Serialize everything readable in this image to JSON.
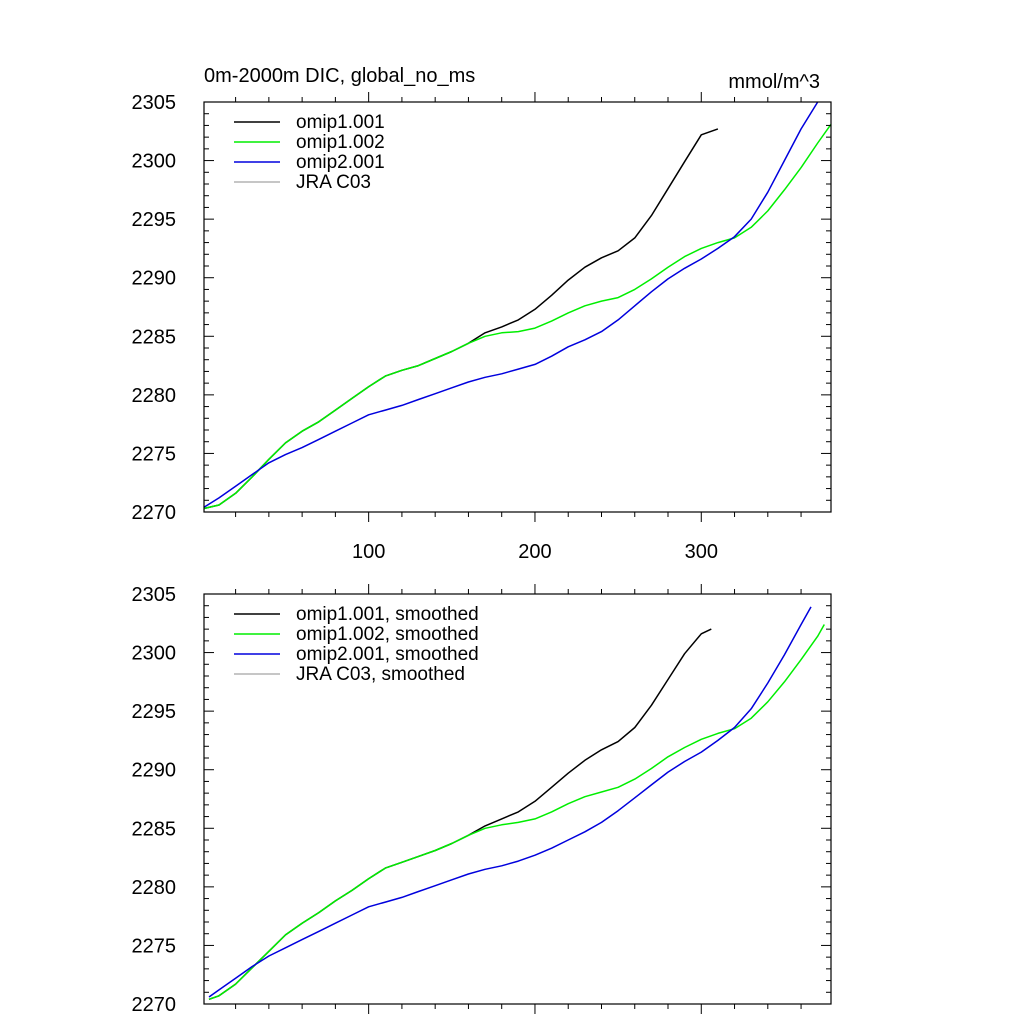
{
  "chart_data": [
    {
      "type": "line",
      "title": "0m-2000m DIC, global_no_ms",
      "units_label": "mmol/m^3",
      "xlabel": "",
      "ylabel": "",
      "xlim": [
        1,
        378
      ],
      "ylim": [
        2270,
        2305
      ],
      "x_ticks": [
        100,
        200,
        300
      ],
      "x_tick_labels_visible": true,
      "y_ticks": [
        2270,
        2275,
        2280,
        2285,
        2290,
        2295,
        2300,
        2305
      ],
      "grid": false,
      "legend_position": "top-left",
      "series": [
        {
          "name": "omip1.001",
          "color": "#000000",
          "x": [
            1,
            10,
            20,
            30,
            40,
            50,
            60,
            70,
            80,
            90,
            100,
            110,
            120,
            130,
            140,
            150,
            160,
            170,
            180,
            190,
            200,
            210,
            220,
            230,
            240,
            250,
            260,
            270,
            280,
            290,
            300,
            310
          ],
          "y": [
            2270.3,
            2270.6,
            2271.6,
            2273.0,
            2274.5,
            2275.9,
            2276.9,
            2277.7,
            2278.7,
            2279.7,
            2280.7,
            2281.6,
            2282.1,
            2282.5,
            2283.1,
            2283.7,
            2284.4,
            2285.3,
            2285.8,
            2286.4,
            2287.3,
            2288.5,
            2289.8,
            2290.9,
            2291.7,
            2292.3,
            2293.4,
            2295.3,
            2297.6,
            2299.9,
            2302.2,
            2302.7
          ]
        },
        {
          "name": "omip1.002",
          "color": "#00ee00",
          "x": [
            1,
            10,
            20,
            30,
            40,
            50,
            60,
            70,
            80,
            90,
            100,
            110,
            120,
            130,
            140,
            150,
            160,
            170,
            180,
            190,
            200,
            210,
            220,
            230,
            240,
            250,
            260,
            270,
            280,
            290,
            300,
            310,
            320,
            330,
            340,
            350,
            360,
            370,
            378
          ],
          "y": [
            2270.3,
            2270.6,
            2271.6,
            2273.0,
            2274.5,
            2275.9,
            2276.9,
            2277.7,
            2278.7,
            2279.7,
            2280.7,
            2281.6,
            2282.1,
            2282.5,
            2283.1,
            2283.7,
            2284.4,
            2285.0,
            2285.3,
            2285.4,
            2285.7,
            2286.3,
            2287.0,
            2287.6,
            2288.0,
            2288.3,
            2289.0,
            2289.9,
            2290.9,
            2291.8,
            2292.5,
            2293.0,
            2293.4,
            2294.3,
            2295.7,
            2297.5,
            2299.4,
            2301.5,
            2303.1
          ]
        },
        {
          "name": "omip2.001",
          "color": "#0000dd",
          "x": [
            1,
            10,
            20,
            30,
            40,
            50,
            60,
            70,
            80,
            90,
            100,
            110,
            120,
            130,
            140,
            150,
            160,
            170,
            180,
            190,
            200,
            210,
            220,
            230,
            240,
            250,
            260,
            270,
            280,
            290,
            300,
            310,
            320,
            330,
            340,
            350,
            360,
            370
          ],
          "y": [
            2270.4,
            2271.2,
            2272.2,
            2273.2,
            2274.2,
            2274.9,
            2275.5,
            2276.2,
            2276.9,
            2277.6,
            2278.3,
            2278.7,
            2279.1,
            2279.6,
            2280.1,
            2280.6,
            2281.1,
            2281.5,
            2281.8,
            2282.2,
            2282.6,
            2283.3,
            2284.1,
            2284.7,
            2285.4,
            2286.4,
            2287.6,
            2288.8,
            2289.9,
            2290.8,
            2291.6,
            2292.5,
            2293.5,
            2295.0,
            2297.3,
            2300.0,
            2302.7,
            2305.0
          ]
        },
        {
          "name": "JRA C03",
          "color": "#b3b3b3",
          "x": [],
          "y": []
        }
      ]
    },
    {
      "type": "line",
      "title": "",
      "xlabel": "",
      "ylabel": "",
      "xlim": [
        1,
        378
      ],
      "ylim": [
        2270,
        2305
      ],
      "x_ticks": [
        100,
        200,
        300
      ],
      "x_tick_labels_visible": false,
      "y_ticks": [
        2270,
        2275,
        2280,
        2285,
        2290,
        2295,
        2300,
        2305
      ],
      "grid": false,
      "legend_position": "top-left",
      "series": [
        {
          "name": "omip1.001, smoothed",
          "color": "#000000",
          "x": [
            4,
            10,
            20,
            30,
            40,
            50,
            60,
            70,
            80,
            90,
            100,
            110,
            120,
            130,
            140,
            150,
            160,
            170,
            180,
            190,
            200,
            210,
            220,
            230,
            240,
            250,
            260,
            270,
            280,
            290,
            300,
            306
          ],
          "y": [
            2270.4,
            2270.7,
            2271.7,
            2273.1,
            2274.5,
            2275.9,
            2276.9,
            2277.8,
            2278.8,
            2279.7,
            2280.7,
            2281.6,
            2282.1,
            2282.6,
            2283.1,
            2283.7,
            2284.4,
            2285.2,
            2285.8,
            2286.4,
            2287.3,
            2288.5,
            2289.7,
            2290.8,
            2291.7,
            2292.4,
            2293.6,
            2295.5,
            2297.7,
            2299.9,
            2301.6,
            2302.0
          ]
        },
        {
          "name": "omip1.002, smoothed",
          "color": "#00ee00",
          "x": [
            4,
            10,
            20,
            30,
            40,
            50,
            60,
            70,
            80,
            90,
            100,
            110,
            120,
            130,
            140,
            150,
            160,
            170,
            180,
            190,
            200,
            210,
            220,
            230,
            240,
            250,
            260,
            270,
            280,
            290,
            300,
            310,
            320,
            330,
            340,
            350,
            360,
            370,
            374
          ],
          "y": [
            2270.4,
            2270.7,
            2271.7,
            2273.1,
            2274.5,
            2275.9,
            2276.9,
            2277.8,
            2278.8,
            2279.7,
            2280.7,
            2281.6,
            2282.1,
            2282.6,
            2283.1,
            2283.7,
            2284.4,
            2285.0,
            2285.3,
            2285.5,
            2285.8,
            2286.4,
            2287.1,
            2287.7,
            2288.1,
            2288.5,
            2289.2,
            2290.1,
            2291.1,
            2291.9,
            2292.6,
            2293.1,
            2293.5,
            2294.4,
            2295.8,
            2297.5,
            2299.4,
            2301.4,
            2302.4
          ]
        },
        {
          "name": "omip2.001, smoothed",
          "color": "#0000dd",
          "x": [
            4,
            10,
            20,
            30,
            40,
            50,
            60,
            70,
            80,
            90,
            100,
            110,
            120,
            130,
            140,
            150,
            160,
            170,
            180,
            190,
            200,
            210,
            220,
            230,
            240,
            250,
            260,
            270,
            280,
            290,
            300,
            310,
            320,
            330,
            340,
            350,
            360,
            366
          ],
          "y": [
            2270.6,
            2271.2,
            2272.2,
            2273.2,
            2274.1,
            2274.8,
            2275.5,
            2276.2,
            2276.9,
            2277.6,
            2278.3,
            2278.7,
            2279.1,
            2279.6,
            2280.1,
            2280.6,
            2281.1,
            2281.5,
            2281.8,
            2282.2,
            2282.7,
            2283.3,
            2284.0,
            2284.7,
            2285.5,
            2286.5,
            2287.6,
            2288.7,
            2289.8,
            2290.7,
            2291.5,
            2292.5,
            2293.6,
            2295.2,
            2297.4,
            2299.8,
            2302.4,
            2303.9
          ]
        },
        {
          "name": "JRA C03, smoothed",
          "color": "#b3b3b3",
          "x": [],
          "y": []
        }
      ]
    }
  ]
}
